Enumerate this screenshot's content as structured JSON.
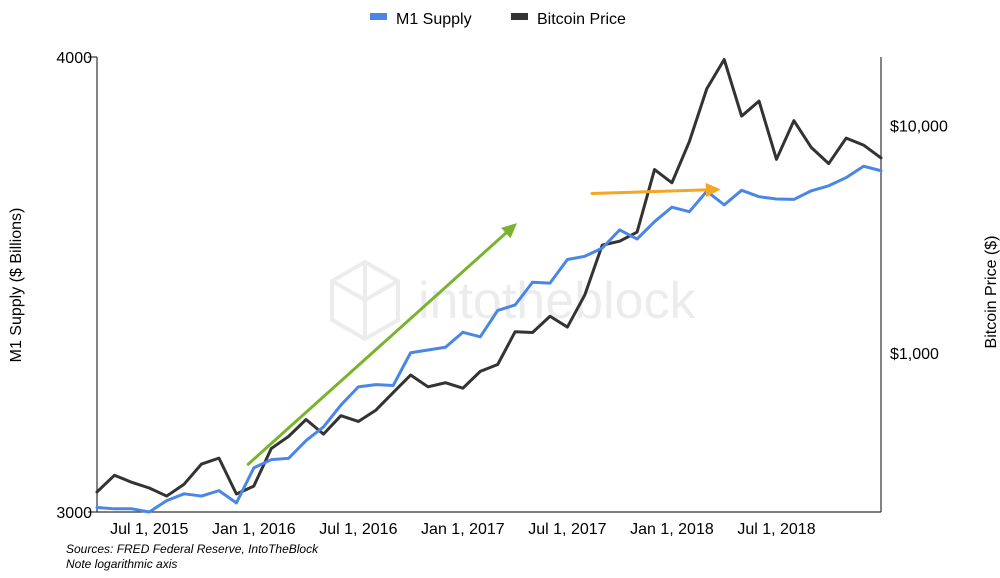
{
  "chart_data": {
    "type": "line",
    "legend": {
      "placement": "top-center",
      "entries": [
        {
          "label": "M1 Supply",
          "color": "#4a86e8"
        },
        {
          "label": "Bitcoin Price",
          "color": "#333333"
        }
      ]
    },
    "x_ticks": [
      "Jul 1, 2015",
      "Jan 1, 2016",
      "Jul 1, 2016",
      "Jan 1, 2017",
      "Jul 1, 2017",
      "Jan 1, 2018",
      "Jul 1, 2018"
    ],
    "x_tick_index": [
      3,
      9,
      15,
      21,
      27,
      33,
      39
    ],
    "y_left": {
      "label": "M1 Supply ($ Billions)",
      "min": 3000,
      "max": 4000,
      "ticks": [
        "3000",
        "4000"
      ],
      "tick_values": [
        3000,
        4000
      ]
    },
    "y_right": {
      "label": "Bitcoin Price ($)",
      "scale": "log",
      "min": 200,
      "max": 20000,
      "ticks": [
        "$1,000",
        "$10,000"
      ],
      "tick_values": [
        1000,
        10000
      ]
    },
    "series": [
      {
        "name": "M1 Supply",
        "axis": "left",
        "color": "#4a86e8",
        "values": [
          3010,
          3007,
          3007,
          3000,
          3025,
          3040,
          3035,
          3047,
          3020,
          3097,
          3115,
          3118,
          3157,
          3187,
          3235,
          3275,
          3280,
          3278,
          3350,
          3356,
          3362,
          3395,
          3385,
          3443,
          3455,
          3505,
          3503,
          3555,
          3562,
          3580,
          3620,
          3600,
          3638,
          3670,
          3660,
          3705,
          3675,
          3707,
          3693,
          3688,
          3687,
          3706,
          3717,
          3735,
          3760,
          3750
        ]
      },
      {
        "name": "Bitcoin Price",
        "axis": "right",
        "color": "#333333",
        "values": [
          245,
          290,
          270,
          255,
          235,
          265,
          325,
          345,
          240,
          260,
          380,
          430,
          510,
          440,
          530,
          500,
          560,
          670,
          800,
          710,
          740,
          700,
          830,
          890,
          1240,
          1230,
          1450,
          1300,
          1800,
          2980,
          3100,
          3400,
          6400,
          5600,
          8500,
          14500,
          19500,
          11000,
          12800,
          7100,
          10500,
          8000,
          6800,
          8800,
          8200,
          7200
        ]
      }
    ],
    "annotations": [
      {
        "type": "arrow",
        "color": "#7ab32e",
        "from_index": 13.5,
        "from_value": 3105,
        "to_index": 37.5,
        "to_value": 3635,
        "axis": "left"
      },
      {
        "type": "arrow",
        "color": "#f5a623",
        "from_index": 44.2,
        "from_value": 3700,
        "to_index": 55.7,
        "to_value": 3709,
        "axis": "left"
      }
    ],
    "watermark": "intotheblock"
  },
  "notes": {
    "line1": "Sources: FRED Federal Reserve, IntoTheBlock",
    "line2": "Note logarithmic axis"
  }
}
